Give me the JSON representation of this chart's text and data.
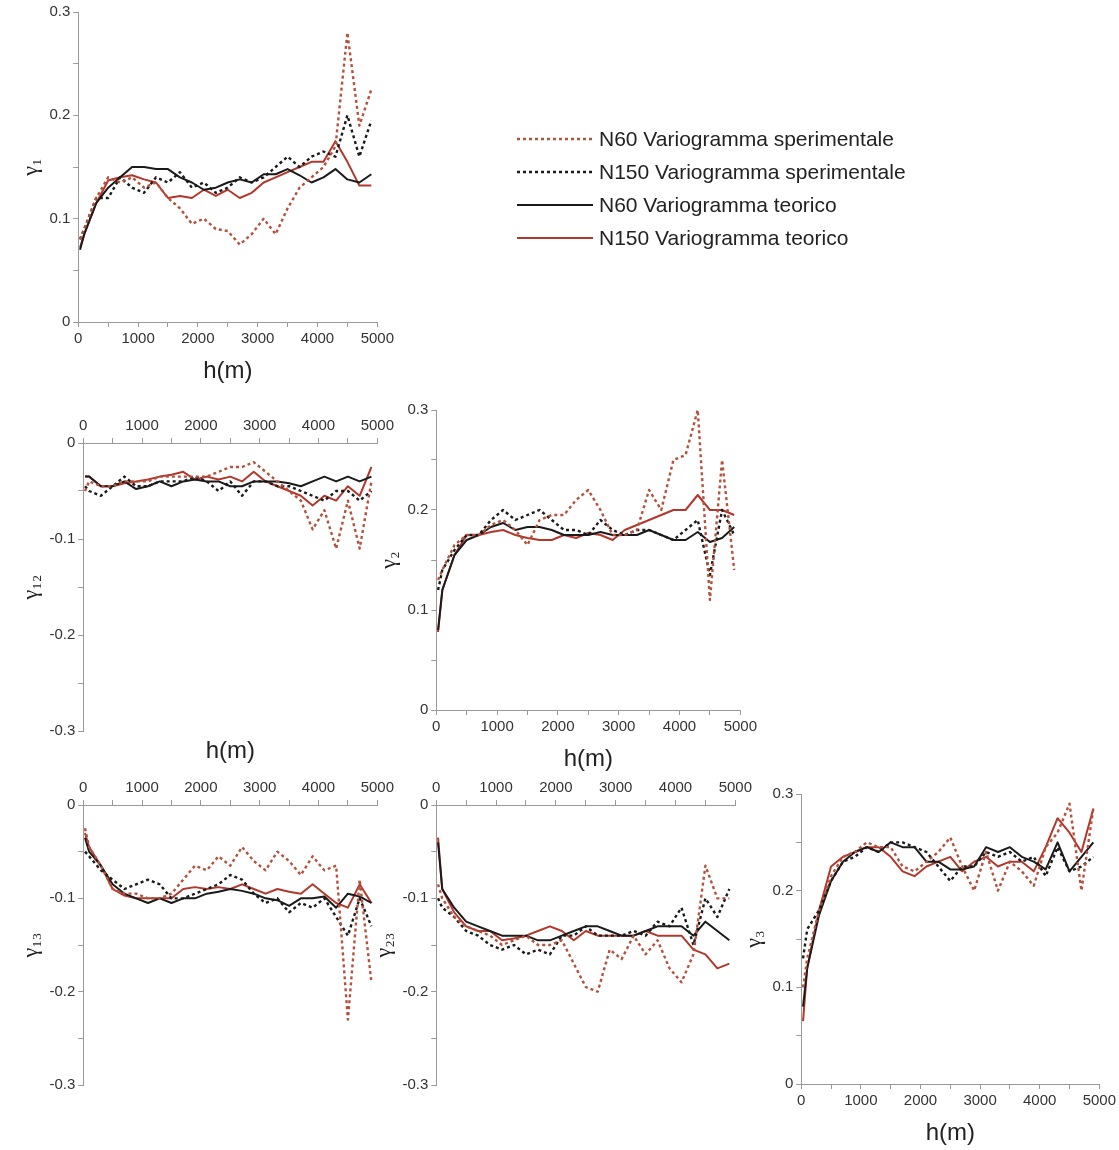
{
  "chart_data": [
    {
      "type": "line",
      "ylabel": "γ₁",
      "xlabel": "h(m)",
      "legend": "right",
      "line_style": "solid",
      "x": [
        30,
        100,
        300,
        500,
        700,
        900,
        1100,
        1300,
        1500,
        1700,
        1900,
        2100,
        2300,
        2500,
        2700,
        2900,
        3100,
        3300,
        3500,
        3700,
        3900,
        4100,
        4300,
        4500,
        4700,
        4900
      ],
      "xlim": [
        0,
        5000
      ],
      "xticks": [
        0,
        {
          "value": 500,
          "label": null
        },
        1000,
        {
          "value": 1500,
          "label": null
        },
        2000,
        {
          "value": 2500,
          "label": null
        },
        3000,
        {
          "value": 3500,
          "label": null
        },
        4000,
        {
          "value": 4500,
          "label": null
        },
        5000
      ],
      "ylim": [
        0,
        0.3
      ],
      "yticks": [
        0,
        {
          "value": 0.05,
          "label": null
        },
        0.1,
        {
          "value": 0.15,
          "label": null
        },
        0.2,
        {
          "value": 0.25,
          "label": null
        },
        0.3
      ],
      "series": [
        {
          "name": "N60 Variogramma sperimentale",
          "color": "#b5503c",
          "line_style": "dotted",
          "values": [
            0.08,
            0.09,
            0.12,
            0.14,
            0.135,
            0.14,
            0.13,
            0.135,
            0.12,
            0.11,
            0.095,
            0.1,
            0.09,
            0.088,
            0.075,
            0.085,
            0.1,
            0.085,
            0.11,
            0.13,
            0.14,
            0.15,
            0.17,
            0.28,
            0.19,
            0.225
          ]
        },
        {
          "name": "N150 Variogramma sperimentale",
          "color": "#1a1a1a",
          "line_style": "dotted",
          "values": [
            0.08,
            0.09,
            0.12,
            0.12,
            0.14,
            0.13,
            0.125,
            0.14,
            0.135,
            0.145,
            0.13,
            0.135,
            0.125,
            0.13,
            0.14,
            0.135,
            0.14,
            0.15,
            0.16,
            0.15,
            0.16,
            0.165,
            0.16,
            0.2,
            0.16,
            0.195
          ]
        },
        {
          "name": "N60 Variogramma teorico",
          "color": "#1a1a1a",
          "values": [
            0.07,
            0.085,
            0.115,
            0.13,
            0.14,
            0.15,
            0.15,
            0.148,
            0.148,
            0.14,
            0.135,
            0.128,
            0.13,
            0.135,
            0.138,
            0.135,
            0.143,
            0.143,
            0.148,
            0.142,
            0.135,
            0.14,
            0.148,
            0.138,
            0.135,
            0.143
          ]
        },
        {
          "name": "N150 Variogramma teorico",
          "color": "#b3382c",
          "values": [
            0.072,
            0.085,
            0.115,
            0.137,
            0.14,
            0.142,
            0.138,
            0.135,
            0.12,
            0.122,
            0.12,
            0.128,
            0.122,
            0.128,
            0.12,
            0.125,
            0.135,
            0.14,
            0.145,
            0.15,
            0.155,
            0.155,
            0.175,
            0.155,
            0.132,
            0.132
          ]
        }
      ]
    },
    {
      "type": "line",
      "ylabel": "γ₁₂",
      "xlabel": "h(m)",
      "line_style": "solid",
      "x": [
        30,
        100,
        300,
        500,
        700,
        900,
        1100,
        1300,
        1500,
        1700,
        1900,
        2100,
        2300,
        2500,
        2700,
        2900,
        3100,
        3300,
        3500,
        3700,
        3900,
        4100,
        4300,
        4500,
        4700,
        4900
      ],
      "xlim": [
        0,
        5000
      ],
      "xticks": [
        0,
        {
          "value": 500,
          "label": null
        },
        1000,
        {
          "value": 1500,
          "label": null
        },
        2000,
        {
          "value": 2500,
          "label": null
        },
        3000,
        {
          "value": 3500,
          "label": null
        },
        4000,
        {
          "value": 4500,
          "label": null
        },
        5000
      ],
      "ylim": [
        -0.3,
        0
      ],
      "yticks": [
        -0.3,
        {
          "value": -0.25,
          "label": null
        },
        -0.2,
        {
          "value": -0.15,
          "label": null
        },
        -0.1,
        {
          "value": -0.05,
          "label": null
        },
        0
      ],
      "series": [
        {
          "color": "#b5503c",
          "line_style": "dotted",
          "values": [
            -0.05,
            -0.04,
            -0.045,
            -0.045,
            -0.04,
            -0.04,
            -0.04,
            -0.035,
            -0.035,
            -0.035,
            -0.035,
            -0.035,
            -0.03,
            -0.025,
            -0.025,
            -0.02,
            -0.03,
            -0.04,
            -0.05,
            -0.06,
            -0.09,
            -0.07,
            -0.11,
            -0.06,
            -0.11,
            -0.04
          ]
        },
        {
          "color": "#1a1a1a",
          "line_style": "dotted",
          "values": [
            -0.045,
            -0.05,
            -0.055,
            -0.045,
            -0.035,
            -0.045,
            -0.045,
            -0.04,
            -0.04,
            -0.04,
            -0.035,
            -0.04,
            -0.05,
            -0.04,
            -0.055,
            -0.04,
            -0.04,
            -0.045,
            -0.045,
            -0.05,
            -0.055,
            -0.06,
            -0.05,
            -0.05,
            -0.06,
            -0.05
          ]
        },
        {
          "color": "#1a1a1a",
          "values": [
            -0.035,
            -0.035,
            -0.045,
            -0.045,
            -0.04,
            -0.048,
            -0.045,
            -0.04,
            -0.045,
            -0.04,
            -0.038,
            -0.04,
            -0.04,
            -0.045,
            -0.045,
            -0.04,
            -0.04,
            -0.04,
            -0.042,
            -0.045,
            -0.04,
            -0.035,
            -0.04,
            -0.035,
            -0.04,
            -0.035
          ]
        },
        {
          "color": "#b3382c",
          "values": [
            -0.035,
            -0.035,
            -0.045,
            -0.045,
            -0.042,
            -0.04,
            -0.038,
            -0.035,
            -0.033,
            -0.03,
            -0.038,
            -0.035,
            -0.038,
            -0.035,
            -0.04,
            -0.03,
            -0.04,
            -0.045,
            -0.05,
            -0.055,
            -0.065,
            -0.055,
            -0.06,
            -0.045,
            -0.055,
            -0.025
          ]
        }
      ]
    },
    {
      "type": "line",
      "ylabel": "γ₂",
      "xlabel": "h(m)",
      "line_style": "solid",
      "x": [
        30,
        100,
        300,
        500,
        700,
        900,
        1100,
        1300,
        1500,
        1700,
        1900,
        2100,
        2300,
        2500,
        2700,
        2900,
        3100,
        3300,
        3500,
        3700,
        3900,
        4100,
        4300,
        4500,
        4700,
        4900
      ],
      "xlim": [
        0,
        5000
      ],
      "xticks": [
        0,
        {
          "value": 500,
          "label": null
        },
        1000,
        {
          "value": 1500,
          "label": null
        },
        2000,
        {
          "value": 2500,
          "label": null
        },
        3000,
        {
          "value": 3500,
          "label": null
        },
        4000,
        {
          "value": 4500,
          "label": null
        },
        5000
      ],
      "ylim": [
        0,
        0.3
      ],
      "yticks": [
        0,
        {
          "value": 0.05,
          "label": null
        },
        0.1,
        {
          "value": 0.15,
          "label": null
        },
        0.2,
        {
          "value": 0.25,
          "label": null
        },
        0.3
      ],
      "series": [
        {
          "color": "#b5503c",
          "line_style": "dotted",
          "values": [
            0.13,
            0.14,
            0.165,
            0.175,
            0.175,
            0.185,
            0.19,
            0.18,
            0.165,
            0.19,
            0.195,
            0.195,
            0.21,
            0.22,
            0.2,
            0.175,
            0.175,
            0.18,
            0.22,
            0.2,
            0.25,
            0.255,
            0.3,
            0.11,
            0.25,
            0.14
          ]
        },
        {
          "color": "#1a1a1a",
          "line_style": "dotted",
          "values": [
            0.12,
            0.14,
            0.16,
            0.175,
            0.175,
            0.19,
            0.2,
            0.19,
            0.195,
            0.2,
            0.19,
            0.18,
            0.18,
            0.175,
            0.19,
            0.18,
            0.175,
            0.18,
            0.18,
            0.175,
            0.17,
            0.18,
            0.19,
            0.135,
            0.2,
            0.175
          ]
        },
        {
          "color": "#1a1a1a",
          "values": [
            0.08,
            0.12,
            0.155,
            0.17,
            0.175,
            0.183,
            0.187,
            0.18,
            0.183,
            0.183,
            0.18,
            0.175,
            0.175,
            0.175,
            0.178,
            0.175,
            0.175,
            0.175,
            0.18,
            0.175,
            0.17,
            0.17,
            0.178,
            0.168,
            0.172,
            0.183
          ]
        },
        {
          "color": "#b3382c",
          "values": [
            0.078,
            0.12,
            0.155,
            0.175,
            0.175,
            0.178,
            0.18,
            0.175,
            0.172,
            0.17,
            0.17,
            0.175,
            0.172,
            0.177,
            0.175,
            0.17,
            0.18,
            0.185,
            0.19,
            0.195,
            0.2,
            0.2,
            0.215,
            0.2,
            0.2,
            0.195
          ]
        }
      ]
    },
    {
      "type": "line",
      "ylabel": "γ₁₃",
      "line_style": "solid",
      "x": [
        30,
        100,
        300,
        500,
        700,
        900,
        1100,
        1300,
        1500,
        1700,
        1900,
        2100,
        2300,
        2500,
        2700,
        2900,
        3100,
        3300,
        3500,
        3700,
        3900,
        4100,
        4300,
        4500,
        4700,
        4900
      ],
      "xlim": [
        0,
        5000
      ],
      "xticks": [
        0,
        {
          "value": 500,
          "label": null
        },
        1000,
        {
          "value": 1500,
          "label": null
        },
        2000,
        {
          "value": 2500,
          "label": null
        },
        3000,
        {
          "value": 3500,
          "label": null
        },
        4000,
        {
          "value": 4500,
          "label": null
        },
        5000
      ],
      "ylim": [
        -0.3,
        0
      ],
      "yticks": [
        -0.3,
        {
          "value": -0.25,
          "label": null
        },
        -0.2,
        {
          "value": -0.15,
          "label": null
        },
        -0.1,
        {
          "value": -0.05,
          "label": null
        },
        0
      ],
      "series": [
        {
          "color": "#b5503c",
          "line_style": "dotted",
          "values": [
            -0.025,
            -0.045,
            -0.065,
            -0.09,
            -0.095,
            -0.095,
            -0.1,
            -0.1,
            -0.095,
            -0.08,
            -0.065,
            -0.07,
            -0.055,
            -0.065,
            -0.045,
            -0.06,
            -0.07,
            -0.05,
            -0.06,
            -0.075,
            -0.055,
            -0.07,
            -0.065,
            -0.23,
            -0.08,
            -0.19
          ]
        },
        {
          "color": "#1a1a1a",
          "line_style": "dotted",
          "values": [
            -0.05,
            -0.055,
            -0.07,
            -0.08,
            -0.09,
            -0.085,
            -0.08,
            -0.085,
            -0.1,
            -0.1,
            -0.095,
            -0.09,
            -0.085,
            -0.075,
            -0.08,
            -0.095,
            -0.105,
            -0.1,
            -0.115,
            -0.105,
            -0.11,
            -0.1,
            -0.12,
            -0.14,
            -0.1,
            -0.13
          ]
        },
        {
          "color": "#1a1a1a",
          "values": [
            -0.035,
            -0.05,
            -0.065,
            -0.085,
            -0.095,
            -0.1,
            -0.105,
            -0.1,
            -0.105,
            -0.1,
            -0.1,
            -0.095,
            -0.093,
            -0.09,
            -0.092,
            -0.095,
            -0.1,
            -0.102,
            -0.108,
            -0.1,
            -0.1,
            -0.098,
            -0.11,
            -0.095,
            -0.098,
            -0.105
          ]
        },
        {
          "color": "#b3382c",
          "values": [
            -0.03,
            -0.045,
            -0.065,
            -0.09,
            -0.097,
            -0.1,
            -0.1,
            -0.1,
            -0.1,
            -0.09,
            -0.088,
            -0.09,
            -0.088,
            -0.09,
            -0.085,
            -0.09,
            -0.095,
            -0.09,
            -0.093,
            -0.095,
            -0.085,
            -0.095,
            -0.105,
            -0.11,
            -0.085,
            -0.105
          ]
        }
      ]
    },
    {
      "type": "line",
      "ylabel": "γ₂₃",
      "line_style": "solid",
      "x": [
        30,
        100,
        300,
        500,
        700,
        900,
        1100,
        1300,
        1500,
        1700,
        1900,
        2100,
        2300,
        2500,
        2700,
        2900,
        3100,
        3300,
        3500,
        3700,
        3900,
        4100,
        4300,
        4500,
        4700,
        4900
      ],
      "xlim": [
        0,
        5000
      ],
      "xticks": [
        0,
        {
          "value": 500,
          "label": null
        },
        1000,
        {
          "value": 1500,
          "label": null
        },
        2000,
        {
          "value": 2500,
          "label": null
        },
        3000,
        {
          "value": 3500,
          "label": null
        },
        4000,
        {
          "value": 4500,
          "label": null
        },
        5000
      ],
      "ylim": [
        -0.3,
        0
      ],
      "yticks": [
        -0.3,
        {
          "value": -0.25,
          "label": null
        },
        -0.2,
        {
          "value": -0.15,
          "label": null
        },
        -0.1,
        {
          "value": -0.05,
          "label": null
        },
        0
      ],
      "series": [
        {
          "color": "#b5503c",
          "line_style": "dotted",
          "values": [
            -0.085,
            -0.1,
            -0.12,
            -0.13,
            -0.135,
            -0.14,
            -0.15,
            -0.145,
            -0.14,
            -0.15,
            -0.15,
            -0.145,
            -0.17,
            -0.195,
            -0.2,
            -0.155,
            -0.165,
            -0.14,
            -0.16,
            -0.145,
            -0.175,
            -0.19,
            -0.16,
            -0.065,
            -0.1,
            -0.1
          ]
        },
        {
          "color": "#1a1a1a",
          "line_style": "dotted",
          "values": [
            -0.1,
            -0.11,
            -0.12,
            -0.135,
            -0.14,
            -0.15,
            -0.155,
            -0.15,
            -0.16,
            -0.155,
            -0.16,
            -0.14,
            -0.14,
            -0.13,
            -0.14,
            -0.14,
            -0.14,
            -0.135,
            -0.14,
            -0.125,
            -0.13,
            -0.11,
            -0.15,
            -0.1,
            -0.12,
            -0.09
          ]
        },
        {
          "color": "#1a1a1a",
          "values": [
            -0.04,
            -0.09,
            -0.11,
            -0.125,
            -0.13,
            -0.135,
            -0.14,
            -0.14,
            -0.14,
            -0.145,
            -0.145,
            -0.14,
            -0.135,
            -0.13,
            -0.13,
            -0.135,
            -0.14,
            -0.14,
            -0.135,
            -0.13,
            -0.13,
            -0.13,
            -0.14,
            -0.125,
            -0.135,
            -0.145
          ]
        },
        {
          "color": "#b3382c",
          "values": [
            -0.035,
            -0.09,
            -0.115,
            -0.13,
            -0.135,
            -0.135,
            -0.145,
            -0.143,
            -0.14,
            -0.135,
            -0.13,
            -0.135,
            -0.145,
            -0.135,
            -0.14,
            -0.14,
            -0.14,
            -0.14,
            -0.135,
            -0.14,
            -0.14,
            -0.14,
            -0.155,
            -0.16,
            -0.175,
            -0.17
          ]
        }
      ]
    },
    {
      "type": "line",
      "ylabel": "γ₃",
      "xlabel": "h(m)",
      "line_style": "solid",
      "x": [
        30,
        100,
        300,
        500,
        700,
        900,
        1100,
        1300,
        1500,
        1700,
        1900,
        2100,
        2300,
        2500,
        2700,
        2900,
        3100,
        3300,
        3500,
        3700,
        3900,
        4100,
        4300,
        4500,
        4700,
        4900
      ],
      "xlim": [
        0,
        5000
      ],
      "xticks": [
        0,
        {
          "value": 500,
          "label": null
        },
        1000,
        {
          "value": 1500,
          "label": null
        },
        2000,
        {
          "value": 2500,
          "label": null
        },
        3000,
        {
          "value": 3500,
          "label": null
        },
        4000,
        {
          "value": 4500,
          "label": null
        },
        5000
      ],
      "ylim": [
        0,
        0.3
      ],
      "yticks": [
        0,
        {
          "value": 0.05,
          "label": null
        },
        0.1,
        {
          "value": 0.15,
          "label": null
        },
        0.2,
        {
          "value": 0.25,
          "label": null
        },
        0.3
      ],
      "series": [
        {
          "color": "#b5503c",
          "line_style": "dotted",
          "values": [
            0.1,
            0.13,
            0.18,
            0.215,
            0.235,
            0.24,
            0.25,
            0.245,
            0.245,
            0.225,
            0.22,
            0.23,
            0.24,
            0.255,
            0.225,
            0.2,
            0.24,
            0.2,
            0.23,
            0.22,
            0.205,
            0.245,
            0.26,
            0.29,
            0.2,
            0.285
          ]
        },
        {
          "color": "#1a1a1a",
          "line_style": "dotted",
          "values": [
            0.13,
            0.16,
            0.18,
            0.21,
            0.23,
            0.235,
            0.245,
            0.24,
            0.25,
            0.25,
            0.245,
            0.24,
            0.225,
            0.21,
            0.225,
            0.225,
            0.24,
            0.235,
            0.24,
            0.23,
            0.235,
            0.215,
            0.245,
            0.22,
            0.225,
            0.235
          ]
        },
        {
          "color": "#1a1a1a",
          "values": [
            0.08,
            0.12,
            0.175,
            0.21,
            0.23,
            0.24,
            0.245,
            0.24,
            0.25,
            0.245,
            0.245,
            0.23,
            0.23,
            0.222,
            0.222,
            0.225,
            0.245,
            0.24,
            0.245,
            0.235,
            0.23,
            0.222,
            0.25,
            0.22,
            0.235,
            0.25
          ]
        },
        {
          "color": "#b3382c",
          "values": [
            0.065,
            0.12,
            0.18,
            0.225,
            0.235,
            0.24,
            0.245,
            0.245,
            0.235,
            0.22,
            0.215,
            0.225,
            0.23,
            0.235,
            0.22,
            0.23,
            0.235,
            0.225,
            0.23,
            0.23,
            0.22,
            0.245,
            0.275,
            0.26,
            0.24,
            0.285
          ]
        }
      ]
    }
  ]
}
